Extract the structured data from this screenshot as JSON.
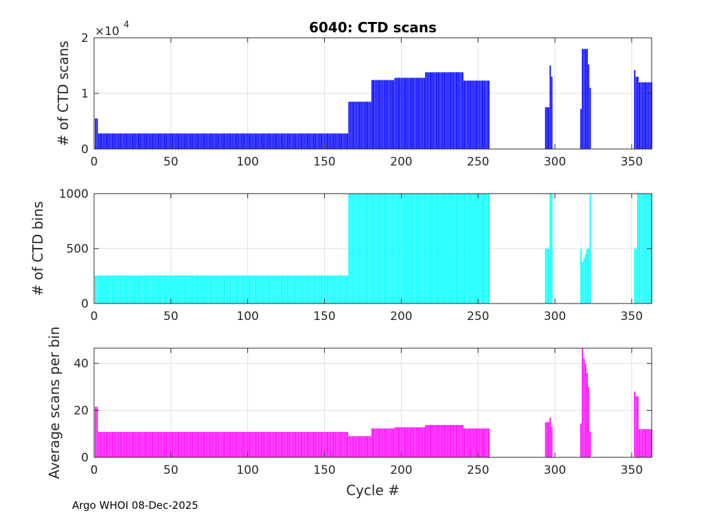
{
  "title": "6040: CTD scans",
  "footer": "Argo WHOI 08-Dec-2025",
  "xlabel": "Cycle #",
  "exponent_base": "×10",
  "exponent_power": "4",
  "chart_data": [
    {
      "type": "bar",
      "name": "scans",
      "ylabel": "# of CTD scans",
      "color": "#0000ff",
      "xlim": [
        0,
        363
      ],
      "ylim": [
        0,
        20000
      ],
      "xticks": [
        0,
        50,
        100,
        150,
        200,
        250,
        300,
        350
      ],
      "yticks": [
        0,
        10000,
        20000
      ],
      "ytick_labels": [
        "0",
        "1",
        "2"
      ],
      "segments": [
        {
          "from": 1,
          "to": 2,
          "v": 5500
        },
        {
          "from": 3,
          "to": 165,
          "v": 2800
        },
        {
          "from": 166,
          "to": 180,
          "v": 8500
        },
        {
          "from": 181,
          "to": 195,
          "v": 12400
        },
        {
          "from": 196,
          "to": 215,
          "v": 12800
        },
        {
          "from": 216,
          "to": 240,
          "v": 13800
        },
        {
          "from": 241,
          "to": 257,
          "v": 12300
        },
        {
          "from": 294,
          "to": 296,
          "v": 7500
        },
        {
          "from": 297,
          "to": 297,
          "v": 15000
        },
        {
          "from": 298,
          "to": 298,
          "v": 13000
        },
        {
          "from": 317,
          "to": 317,
          "v": 7200
        },
        {
          "from": 318,
          "to": 321,
          "v": 18000
        },
        {
          "from": 322,
          "to": 322,
          "v": 15200
        },
        {
          "from": 323,
          "to": 323,
          "v": 11000
        },
        {
          "from": 352,
          "to": 352,
          "v": 14200
        },
        {
          "from": 353,
          "to": 354,
          "v": 13000
        },
        {
          "from": 355,
          "to": 363,
          "v": 12000
        }
      ]
    },
    {
      "type": "bar",
      "name": "bins",
      "ylabel": "# of CTD bins",
      "color": "#00ffff",
      "xlim": [
        0,
        363
      ],
      "ylim": [
        0,
        1000
      ],
      "xticks": [
        0,
        50,
        100,
        150,
        200,
        250,
        300,
        350
      ],
      "yticks": [
        0,
        500,
        1000
      ],
      "ytick_labels": [
        "0",
        "500",
        "1000"
      ],
      "segments": [
        {
          "from": 1,
          "to": 165,
          "v": 255
        },
        {
          "from": 166,
          "to": 257,
          "v": 1000
        },
        {
          "from": 294,
          "to": 296,
          "v": 500
        },
        {
          "from": 297,
          "to": 298,
          "v": 1000
        },
        {
          "from": 317,
          "to": 317,
          "v": 500
        },
        {
          "from": 318,
          "to": 318,
          "v": 380
        },
        {
          "from": 319,
          "to": 319,
          "v": 420
        },
        {
          "from": 320,
          "to": 320,
          "v": 450
        },
        {
          "from": 321,
          "to": 322,
          "v": 500
        },
        {
          "from": 323,
          "to": 323,
          "v": 1000
        },
        {
          "from": 352,
          "to": 353,
          "v": 500
        },
        {
          "from": 354,
          "to": 363,
          "v": 1000
        }
      ]
    },
    {
      "type": "bar",
      "name": "average",
      "ylabel": "Average scans per bin",
      "color": "#ff00ff",
      "xlim": [
        0,
        363
      ],
      "ylim": [
        0,
        46.5
      ],
      "xticks": [
        0,
        50,
        100,
        150,
        200,
        250,
        300,
        350
      ],
      "yticks": [
        0,
        20,
        40
      ],
      "ytick_labels": [
        "0",
        "20",
        "40"
      ],
      "segments": [
        {
          "from": 1,
          "to": 2,
          "v": 21.5
        },
        {
          "from": 3,
          "to": 165,
          "v": 10.8
        },
        {
          "from": 166,
          "to": 180,
          "v": 9.0
        },
        {
          "from": 181,
          "to": 195,
          "v": 12.3
        },
        {
          "from": 196,
          "to": 215,
          "v": 12.8
        },
        {
          "from": 216,
          "to": 240,
          "v": 13.8
        },
        {
          "from": 241,
          "to": 257,
          "v": 12.3
        },
        {
          "from": 294,
          "to": 296,
          "v": 15.0
        },
        {
          "from": 297,
          "to": 297,
          "v": 17.0
        },
        {
          "from": 298,
          "to": 298,
          "v": 13.0
        },
        {
          "from": 317,
          "to": 317,
          "v": 14.4
        },
        {
          "from": 318,
          "to": 318,
          "v": 46.5
        },
        {
          "from": 319,
          "to": 319,
          "v": 42.0
        },
        {
          "from": 320,
          "to": 320,
          "v": 40.0
        },
        {
          "from": 321,
          "to": 321,
          "v": 36.0
        },
        {
          "from": 322,
          "to": 322,
          "v": 30.0
        },
        {
          "from": 323,
          "to": 323,
          "v": 11.0
        },
        {
          "from": 352,
          "to": 352,
          "v": 28.0
        },
        {
          "from": 353,
          "to": 354,
          "v": 26.0
        },
        {
          "from": 355,
          "to": 363,
          "v": 12.0
        }
      ]
    }
  ]
}
